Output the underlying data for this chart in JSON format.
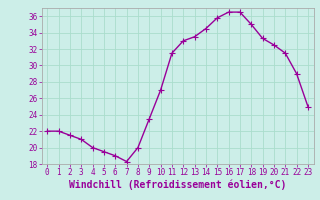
{
  "x": [
    0,
    1,
    2,
    3,
    4,
    5,
    6,
    7,
    8,
    9,
    10,
    11,
    12,
    13,
    14,
    15,
    16,
    17,
    18,
    19,
    20,
    21,
    22,
    23
  ],
  "y": [
    22,
    22,
    21.5,
    21,
    20,
    19.5,
    19,
    18.3,
    20,
    23.5,
    27,
    31.5,
    33,
    33.5,
    34.5,
    35.8,
    36.5,
    36.5,
    35,
    33.3,
    32.5,
    31.5,
    29,
    25
  ],
  "line_color": "#990099",
  "marker": "+",
  "marker_size": 4,
  "linewidth": 1.0,
  "xlabel": "Windchill (Refroidissement éolien,°C)",
  "xlabel_fontsize": 7,
  "ylim": [
    18,
    37
  ],
  "xlim": [
    -0.5,
    23.5
  ],
  "yticks": [
    18,
    20,
    22,
    24,
    26,
    28,
    30,
    32,
    34,
    36
  ],
  "xticks": [
    0,
    1,
    2,
    3,
    4,
    5,
    6,
    7,
    8,
    9,
    10,
    11,
    12,
    13,
    14,
    15,
    16,
    17,
    18,
    19,
    20,
    21,
    22,
    23
  ],
  "grid_color": "#aaddcc",
  "bg_color": "#cceee8",
  "tick_color": "#990099",
  "tick_fontsize": 5.5,
  "xlabel_color": "#990099",
  "spine_color": "#aaaaaa"
}
